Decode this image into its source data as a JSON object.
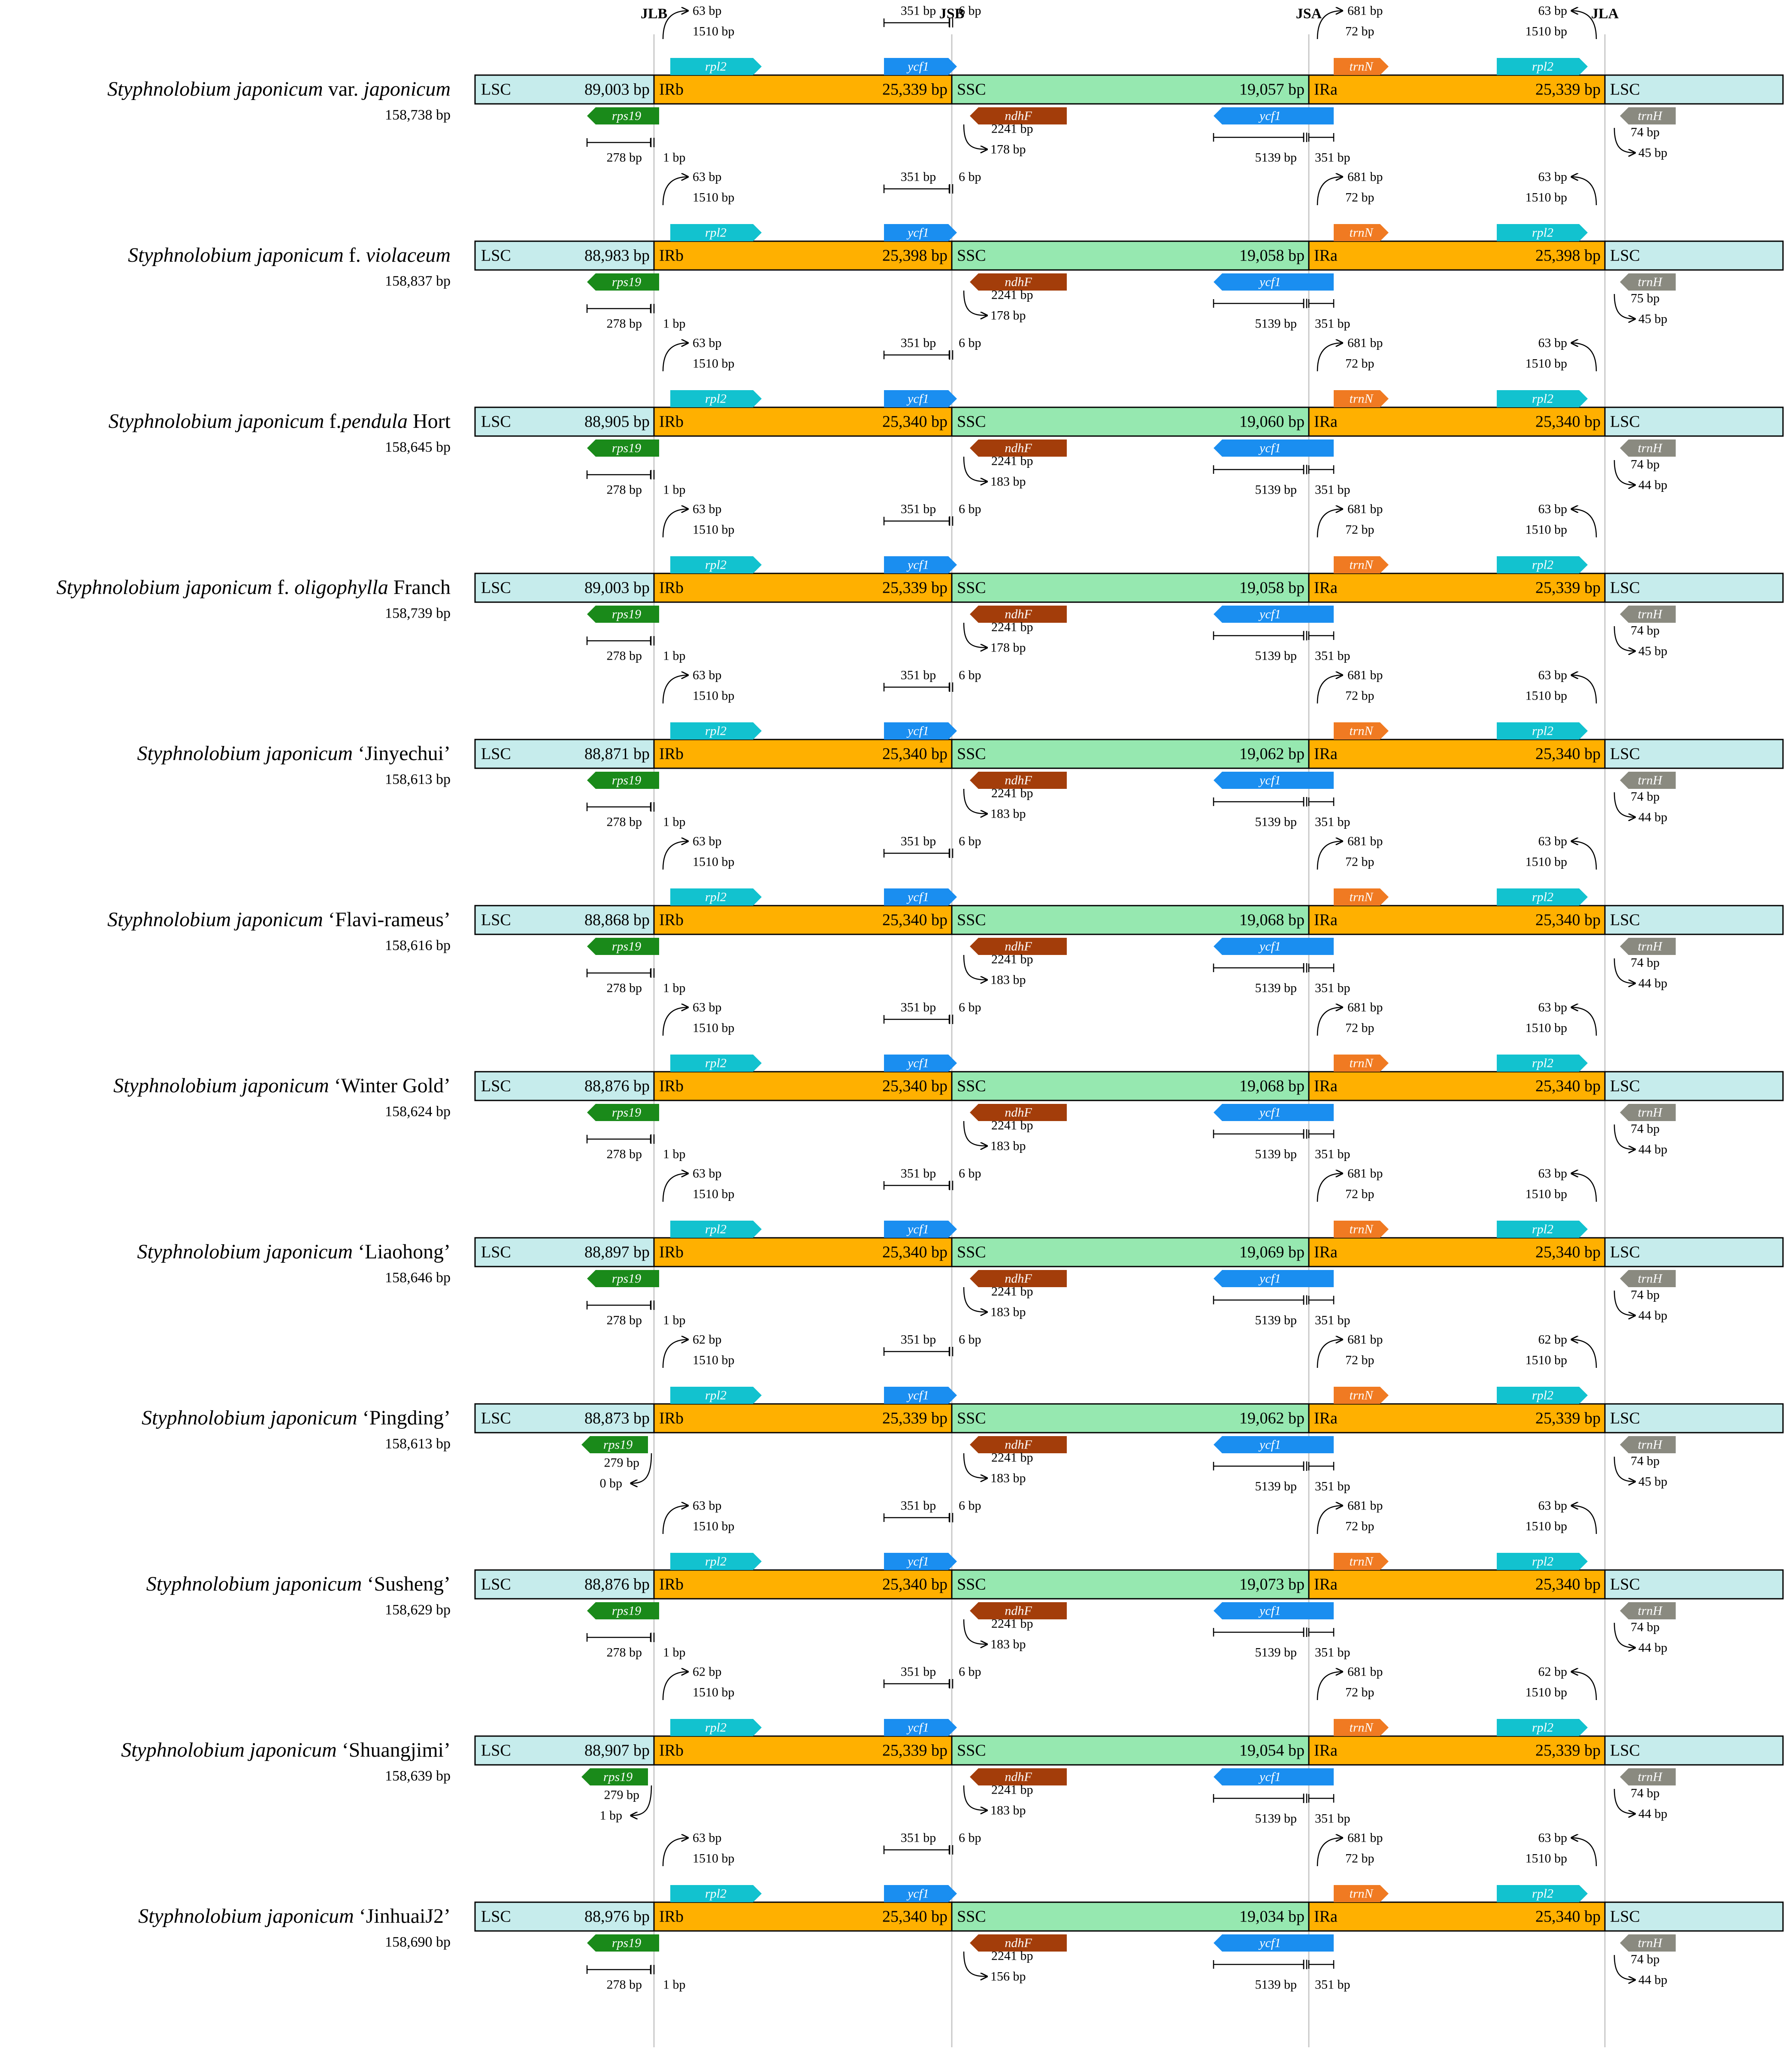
{
  "junctions": [
    "JLB",
    "JSB",
    "JSA",
    "JLA"
  ],
  "regions": {
    "lsc": "LSC",
    "irb": "IRb",
    "ssc": "SSC",
    "ira": "IRa"
  },
  "genes": {
    "rpl2": "rpl2",
    "ycf1": "ycf1",
    "trnN": "trnN",
    "rps19": "rps19",
    "ndhF": "ndhF",
    "trnH": "trnH"
  },
  "colors": {
    "lsc": "#c6ecec",
    "ir": "#ffb000",
    "ssc": "#96e8b0",
    "rpl2": "#12c2cf",
    "ycf1": "#1a8ef0",
    "trnN": "#f07a22",
    "rps19": "#1a8a1a",
    "ndhF": "#a33d0a",
    "trnH": "#8a8a80"
  },
  "rows": [
    {
      "name_italic": "Styphnolobium japonicum",
      "name_plain": " var. ",
      "name_italic2": "japonicum",
      "name_plain2": "",
      "total": "158,738 bp",
      "lsc": "89,003 bp",
      "ir": "25,339 bp",
      "ssc": "19,057 bp",
      "rpl2_top": "63 bp",
      "rpl2_mid": "1510 bp",
      "ycf1_top": "351 bp",
      "ycf1_gap": "6 bp",
      "trnN_top": "681 bp",
      "trnN_mid": "72 bp",
      "rpl2b_top": "63 bp",
      "rpl2b_mid": "1510 bp",
      "rps19_a": "278 bp",
      "rps19_b": "1 bp",
      "ndhF_a": "2241 bp",
      "ndhF_b": "178 bp",
      "ycf1b_a": "5139 bp",
      "ycf1b_b": "351 bp",
      "trnH_a": "74 bp",
      "trnH_b": "45 bp"
    },
    {
      "name_italic": "Styphnolobium japonicum",
      "name_plain": " f. ",
      "name_italic2": "violaceum",
      "name_plain2": "",
      "total": "158,837 bp",
      "lsc": "88,983 bp",
      "ir": "25,398 bp",
      "ssc": "19,058 bp",
      "rpl2_top": "63 bp",
      "rpl2_mid": "1510 bp",
      "ycf1_top": "351 bp",
      "ycf1_gap": "6 bp",
      "trnN_top": "681 bp",
      "trnN_mid": "72 bp",
      "rpl2b_top": "63 bp",
      "rpl2b_mid": "1510 bp",
      "rps19_a": "278 bp",
      "rps19_b": "1 bp",
      "ndhF_a": "2241 bp",
      "ndhF_b": "178 bp",
      "ycf1b_a": "5139 bp",
      "ycf1b_b": "351 bp",
      "trnH_a": "75 bp",
      "trnH_b": "45 bp"
    },
    {
      "name_italic": "Styphnolobium japonicum",
      "name_plain": " f.",
      "name_italic2": "pendula",
      "name_plain2": " Hort",
      "total": "158,645 bp",
      "lsc": "88,905 bp",
      "ir": "25,340 bp",
      "ssc": "19,060 bp",
      "rpl2_top": "63 bp",
      "rpl2_mid": "1510 bp",
      "ycf1_top": "351 bp",
      "ycf1_gap": "6 bp",
      "trnN_top": "681 bp",
      "trnN_mid": "72 bp",
      "rpl2b_top": "63 bp",
      "rpl2b_mid": "1510 bp",
      "rps19_a": "278 bp",
      "rps19_b": "1 bp",
      "ndhF_a": "2241 bp",
      "ndhF_b": "183 bp",
      "ycf1b_a": "5139 bp",
      "ycf1b_b": "351 bp",
      "trnH_a": "74 bp",
      "trnH_b": "44 bp"
    },
    {
      "name_italic": "Styphnolobium japonicum",
      "name_plain": " f. ",
      "name_italic2": "oligophylla",
      "name_plain2": " Franch",
      "total": "158,739 bp",
      "lsc": "89,003 bp",
      "ir": "25,339 bp",
      "ssc": "19,058 bp",
      "rpl2_top": "63 bp",
      "rpl2_mid": "1510 bp",
      "ycf1_top": "351 bp",
      "ycf1_gap": "6 bp",
      "trnN_top": "681 bp",
      "trnN_mid": "72 bp",
      "rpl2b_top": "63 bp",
      "rpl2b_mid": "1510 bp",
      "rps19_a": "278 bp",
      "rps19_b": "1 bp",
      "ndhF_a": "2241 bp",
      "ndhF_b": "178 bp",
      "ycf1b_a": "5139 bp",
      "ycf1b_b": "351 bp",
      "trnH_a": "74 bp",
      "trnH_b": "45 bp"
    },
    {
      "name_italic": "Styphnolobium japonicum",
      "name_plain": " ‘Jinyechui’",
      "name_italic2": "",
      "name_plain2": "",
      "total": "158,613 bp",
      "lsc": "88,871 bp",
      "ir": "25,340 bp",
      "ssc": "19,062 bp",
      "rpl2_top": "63 bp",
      "rpl2_mid": "1510 bp",
      "ycf1_top": "351 bp",
      "ycf1_gap": "6 bp",
      "trnN_top": "681 bp",
      "trnN_mid": "72 bp",
      "rpl2b_top": "63 bp",
      "rpl2b_mid": "1510 bp",
      "rps19_a": "278 bp",
      "rps19_b": "1 bp",
      "ndhF_a": "2241 bp",
      "ndhF_b": "183 bp",
      "ycf1b_a": "5139 bp",
      "ycf1b_b": "351 bp",
      "trnH_a": "74 bp",
      "trnH_b": "44 bp"
    },
    {
      "name_italic": "Styphnolobium japonicum",
      "name_plain": " ‘Flavi-rameus’",
      "name_italic2": "",
      "name_plain2": "",
      "total": "158,616 bp",
      "lsc": "88,868 bp",
      "ir": "25,340 bp",
      "ssc": "19,068 bp",
      "rpl2_top": "63 bp",
      "rpl2_mid": "1510 bp",
      "ycf1_top": "351 bp",
      "ycf1_gap": "6 bp",
      "trnN_top": "681 bp",
      "trnN_mid": "72 bp",
      "rpl2b_top": "63 bp",
      "rpl2b_mid": "1510 bp",
      "rps19_a": "278 bp",
      "rps19_b": "1 bp",
      "ndhF_a": "2241 bp",
      "ndhF_b": "183 bp",
      "ycf1b_a": "5139 bp",
      "ycf1b_b": "351 bp",
      "trnH_a": "74 bp",
      "trnH_b": "44 bp"
    },
    {
      "name_italic": "Styphnolobium japonicum",
      "name_plain": " ‘Winter Gold’",
      "name_italic2": "",
      "name_plain2": "",
      "total": "158,624 bp",
      "lsc": "88,876 bp",
      "ir": "25,340 bp",
      "ssc": "19,068 bp",
      "rpl2_top": "63 bp",
      "rpl2_mid": "1510 bp",
      "ycf1_top": "351 bp",
      "ycf1_gap": "6 bp",
      "trnN_top": "681 bp",
      "trnN_mid": "72 bp",
      "rpl2b_top": "63 bp",
      "rpl2b_mid": "1510 bp",
      "rps19_a": "278 bp",
      "rps19_b": "1 bp",
      "ndhF_a": "2241 bp",
      "ndhF_b": "183 bp",
      "ycf1b_a": "5139 bp",
      "ycf1b_b": "351 bp",
      "trnH_a": "74 bp",
      "trnH_b": "44 bp"
    },
    {
      "name_italic": "Styphnolobium japonicum",
      "name_plain": " ‘Liaohong’",
      "name_italic2": "",
      "name_plain2": "",
      "total": "158,646 bp",
      "lsc": "88,897 bp",
      "ir": "25,340 bp",
      "ssc": "19,069 bp",
      "rpl2_top": "63 bp",
      "rpl2_mid": "1510 bp",
      "ycf1_top": "351 bp",
      "ycf1_gap": "6 bp",
      "trnN_top": "681 bp",
      "trnN_mid": "72 bp",
      "rpl2b_top": "63 bp",
      "rpl2b_mid": "1510 bp",
      "rps19_a": "278 bp",
      "rps19_b": "1 bp",
      "ndhF_a": "2241 bp",
      "ndhF_b": "183 bp",
      "ycf1b_a": "5139 bp",
      "ycf1b_b": "351 bp",
      "trnH_a": "74 bp",
      "trnH_b": "44 bp"
    },
    {
      "name_italic": "Styphnolobium japonicum",
      "name_plain": " ‘Pingding’",
      "name_italic2": "",
      "name_plain2": "",
      "total": "158,613 bp",
      "lsc": "88,873 bp",
      "ir": "25,339 bp",
      "ssc": "19,062 bp",
      "rpl2_top": "62 bp",
      "rpl2_mid": "1510 bp",
      "ycf1_top": "351 bp",
      "ycf1_gap": "6 bp",
      "trnN_top": "681 bp",
      "trnN_mid": "72 bp",
      "rpl2b_top": "62 bp",
      "rpl2b_mid": "1510 bp",
      "rps19_a": "279 bp",
      "rps19_b": "0 bp",
      "ndhF_a": "2241 bp",
      "ndhF_b": "183 bp",
      "ycf1b_a": "5139 bp",
      "ycf1b_b": "351 bp",
      "trnH_a": "74 bp",
      "trnH_b": "45 bp"
    },
    {
      "name_italic": "Styphnolobium japonicum",
      "name_plain": " ‘Susheng’",
      "name_italic2": "",
      "name_plain2": "",
      "total": "158,629 bp",
      "lsc": "88,876 bp",
      "ir": "25,340 bp",
      "ssc": "19,073 bp",
      "rpl2_top": "63 bp",
      "rpl2_mid": "1510 bp",
      "ycf1_top": "351 bp",
      "ycf1_gap": "6 bp",
      "trnN_top": "681 bp",
      "trnN_mid": "72 bp",
      "rpl2b_top": "63 bp",
      "rpl2b_mid": "1510 bp",
      "rps19_a": "278 bp",
      "rps19_b": "1 bp",
      "ndhF_a": "2241 bp",
      "ndhF_b": "183 bp",
      "ycf1b_a": "5139 bp",
      "ycf1b_b": "351 bp",
      "trnH_a": "74 bp",
      "trnH_b": "44 bp"
    },
    {
      "name_italic": "Styphnolobium japonicum",
      "name_plain": " ‘Shuangjimi’",
      "name_italic2": "",
      "name_plain2": "",
      "total": "158,639 bp",
      "lsc": "88,907 bp",
      "ir": "25,339 bp",
      "ssc": "19,054 bp",
      "rpl2_top": "62 bp",
      "rpl2_mid": "1510 bp",
      "ycf1_top": "351 bp",
      "ycf1_gap": "6 bp",
      "trnN_top": "681 bp",
      "trnN_mid": "72 bp",
      "rpl2b_top": "62 bp",
      "rpl2b_mid": "1510 bp",
      "rps19_a": "279 bp",
      "rps19_b": "1 bp",
      "ndhF_a": "2241 bp",
      "ndhF_b": "183 bp",
      "ycf1b_a": "5139 bp",
      "ycf1b_b": "351 bp",
      "trnH_a": "74 bp",
      "trnH_b": "44 bp"
    },
    {
      "name_italic": "Styphnolobium japonicum",
      "name_plain": " ‘JinhuaiJ2’",
      "name_italic2": "",
      "name_plain2": "",
      "total": "158,690 bp",
      "lsc": "88,976 bp",
      "ir": "25,340 bp",
      "ssc": "19,034 bp",
      "rpl2_top": "63 bp",
      "rpl2_mid": "1510 bp",
      "ycf1_top": "351 bp",
      "ycf1_gap": "6 bp",
      "trnN_top": "681 bp",
      "trnN_mid": "72 bp",
      "rpl2b_top": "63 bp",
      "rpl2b_mid": "1510 bp",
      "rps19_a": "278 bp",
      "rps19_b": "1 bp",
      "ndhF_a": "2241 bp",
      "ndhF_b": "156 bp",
      "ycf1b_a": "5139 bp",
      "ycf1b_b": "351 bp",
      "trnH_a": "74 bp",
      "trnH_b": "44 bp"
    }
  ]
}
